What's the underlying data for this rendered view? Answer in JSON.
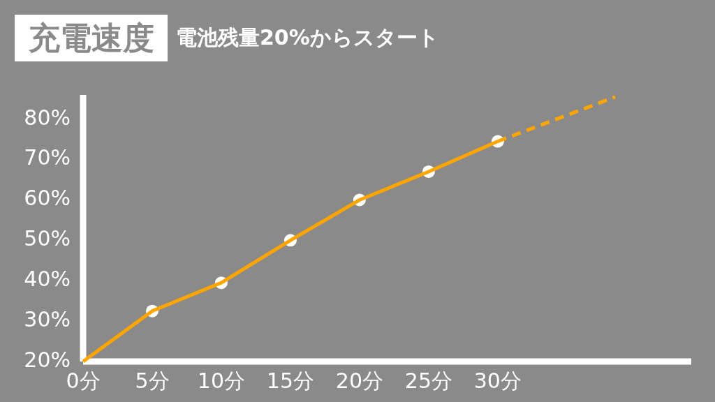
{
  "chart_data": {
    "type": "line",
    "title": "充電速度",
    "subtitle": "電池残量20%からスタート",
    "series": [
      {
        "type": "scatter",
        "color": "#ffffff",
        "x": [
          5,
          10,
          15,
          20,
          25,
          30
        ],
        "values": [
          32.5,
          39.5,
          50,
          60,
          67,
          74.5
        ],
        "marker": "circle"
      },
      {
        "type": "line",
        "color": "#ffa500",
        "x": [
          0,
          5,
          10,
          15,
          20,
          25,
          30
        ],
        "values": [
          20,
          32.5,
          39.5,
          50,
          60,
          67,
          74.5
        ],
        "marker": "none",
        "line_style": "solid"
      },
      {
        "type": "line",
        "color": "#ffa500",
        "x": [
          30,
          38.5
        ],
        "values": [
          74.5,
          85.5
        ],
        "marker": "none",
        "line_style": "dashed"
      }
    ],
    "xlim": [
      0,
      44
    ],
    "xticks": [
      {
        "value": 0,
        "label": "0分"
      },
      {
        "value": 5,
        "label": "5分"
      },
      {
        "value": 10,
        "label": "10分"
      },
      {
        "value": 15,
        "label": "15分"
      },
      {
        "value": 20,
        "label": "20分"
      },
      {
        "value": 25,
        "label": "25分"
      },
      {
        "value": 30,
        "label": "30分"
      }
    ],
    "ylim": [
      20,
      86
    ],
    "yticks": [
      {
        "value": 20,
        "label": "20%"
      },
      {
        "value": 30,
        "label": "30%"
      },
      {
        "value": 40,
        "label": "40%"
      },
      {
        "value": 50,
        "label": "50%"
      },
      {
        "value": 60,
        "label": "60%"
      },
      {
        "value": 70,
        "label": "70%"
      },
      {
        "value": 80,
        "label": "80%"
      }
    ],
    "grid": false,
    "legend": false
  }
}
